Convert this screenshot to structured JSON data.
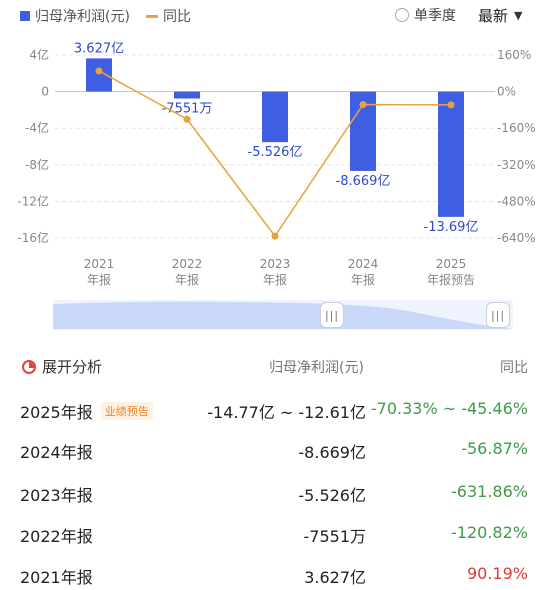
{
  "legend": {
    "series1": "归母净利润(元)",
    "series2": "同比",
    "toggle_label": "单季度",
    "dropdown_label": "最新",
    "colors": {
      "bar": "#3f5fe3",
      "line": "#e9a23b"
    }
  },
  "chart_data": {
    "type": "bar",
    "categories": [
      [
        "2021",
        "年报"
      ],
      [
        "2022",
        "年报"
      ],
      [
        "2023",
        "年报"
      ],
      [
        "2024",
        "年报"
      ],
      [
        "2025",
        "年报预告"
      ]
    ],
    "series": [
      {
        "name": "归母净利润(元)",
        "type": "bar",
        "values": [
          3.627,
          -0.7551,
          -5.526,
          -8.669,
          -13.69
        ],
        "labels": [
          "3.627亿",
          "-7551万",
          "-5.526亿",
          "-8.669亿",
          "-13.69亿"
        ]
      },
      {
        "name": "同比",
        "type": "line",
        "axis": "right",
        "values": [
          90.19,
          -120.82,
          -631.86,
          -56.87,
          -57.9
        ]
      }
    ],
    "y_left": {
      "ticks": [
        4,
        0,
        -4,
        -8,
        -12,
        -16
      ],
      "labels": [
        "4亿",
        "0",
        "-4亿",
        "-8亿",
        "-12亿",
        "-16亿"
      ],
      "range": [
        -16,
        4
      ]
    },
    "y_right": {
      "ticks": [
        160,
        0,
        -160,
        -320,
        -480,
        -640
      ],
      "labels": [
        "160%",
        "0%",
        "-160%",
        "-320%",
        "-480%",
        "-640%"
      ],
      "range": [
        -640,
        160
      ]
    },
    "grid": true
  },
  "table": {
    "title": "展开分析",
    "col_value": "归母净利润(元)",
    "col_yoy": "同比",
    "rows": [
      {
        "year": "2025年报",
        "badge": "业绩预告",
        "value": "-14.77亿 ~ -12.61亿",
        "yoy": "-70.33% ~ -45.46%"
      },
      {
        "year": "2024年报",
        "value": "-8.669亿",
        "yoy": "-56.87%"
      },
      {
        "year": "2023年报",
        "value": "-5.526亿",
        "yoy": "-631.86%"
      },
      {
        "year": "2022年报",
        "value": "-7551万",
        "yoy": "-120.82%"
      },
      {
        "year": "2021年报",
        "value": "3.627亿",
        "yoy": "90.19%"
      }
    ]
  }
}
